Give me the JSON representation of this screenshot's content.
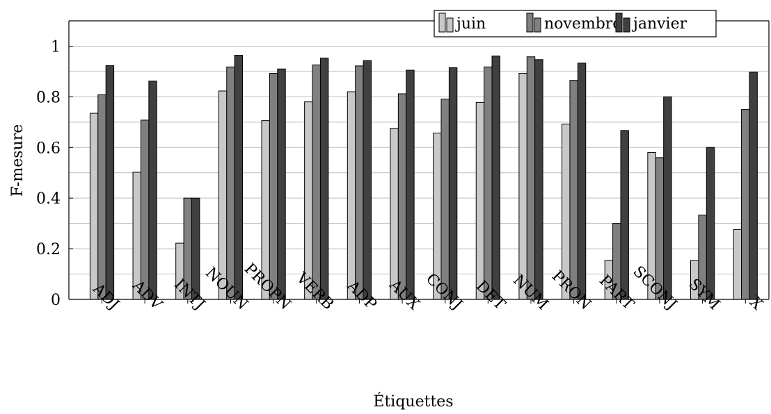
{
  "chart_data": {
    "type": "bar",
    "xlabel": "Étiquettes",
    "ylabel": "F-mesure",
    "ylim": [
      0,
      1.1
    ],
    "yticks": [
      "0",
      "0.2",
      "0.4",
      "0.6",
      "0.8",
      "1"
    ],
    "grid": "horizontal",
    "legend_position": "top-right",
    "categories": [
      "ADJ",
      "ADV",
      "INTJ",
      "NOUN",
      "PROPN",
      "VERB",
      "ADP",
      "AUX",
      "CONJ",
      "DET",
      "NUM",
      "PRON",
      "PART",
      "SCONJ",
      "SYM",
      "X"
    ],
    "series": [
      {
        "name": "juin",
        "color": "#c8c8c8",
        "values": [
          0.735,
          0.502,
          0.222,
          0.823,
          0.706,
          0.78,
          0.82,
          0.676,
          0.657,
          0.778,
          0.893,
          0.692,
          0.154,
          0.58,
          0.154,
          0.276
        ]
      },
      {
        "name": "novembre",
        "color": "#808080",
        "values": [
          0.808,
          0.708,
          0.4,
          0.918,
          0.893,
          0.926,
          0.922,
          0.812,
          0.791,
          0.918,
          0.958,
          0.865,
          0.3,
          0.56,
          0.333,
          0.75
        ]
      },
      {
        "name": "janvier",
        "color": "#404040",
        "values": [
          0.923,
          0.862,
          0.4,
          0.964,
          0.91,
          0.953,
          0.943,
          0.905,
          0.915,
          0.961,
          0.947,
          0.933,
          0.667,
          0.8,
          0.6,
          0.897
        ]
      }
    ]
  }
}
